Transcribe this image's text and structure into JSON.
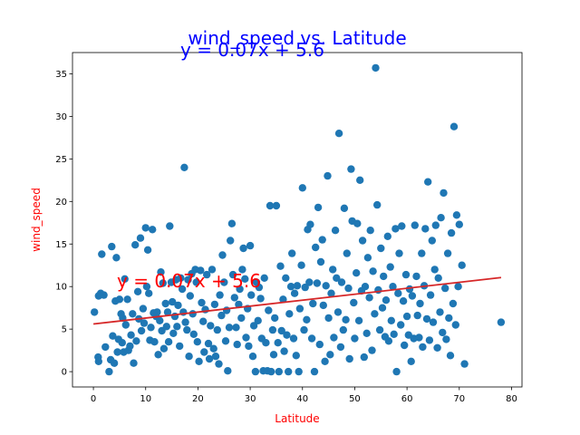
{
  "chart_data": {
    "type": "scatter",
    "title": "wind_speed vs. Latitude",
    "xlabel": "Latitude",
    "ylabel": "wind_speed",
    "xlim": [
      -4,
      82
    ],
    "ylim": [
      -1.8,
      37.5
    ],
    "xticks": [
      0,
      10,
      20,
      30,
      40,
      50,
      60,
      70,
      80
    ],
    "yticks": [
      0,
      5,
      10,
      15,
      20,
      25,
      30,
      35
    ],
    "grid": false,
    "colors": {
      "points": "#1f77b4",
      "regression": "#d62728",
      "title": "#0000ff",
      "labels": "#ff0000",
      "annotation": "#ff0000",
      "subtitle": "#0000ff"
    },
    "regression": {
      "slope": 0.07,
      "intercept": 5.6,
      "equation": "y = 0.07x + 5.6",
      "x_range": [
        0,
        78
      ]
    },
    "annotations": [
      {
        "text": "y = 0.07x + 5.6",
        "x": 4.5,
        "y": 9.9,
        "color": "red",
        "overlaps": "plot"
      },
      {
        "text": "y = 0.07x + 5.6",
        "x": 12.0,
        "y": 37.3,
        "color": "blue",
        "overlaps": "title"
      }
    ],
    "series": [
      {
        "points": [
          [
            0.2,
            7.0
          ],
          [
            0.9,
            1.7
          ],
          [
            1.0,
            1.2
          ],
          [
            1.0,
            8.9
          ],
          [
            1.4,
            9.2
          ],
          [
            1.6,
            13.8
          ],
          [
            2.0,
            9.0
          ],
          [
            2.3,
            2.9
          ],
          [
            3.0,
            0.0
          ],
          [
            3.3,
            1.4
          ],
          [
            3.5,
            14.7
          ],
          [
            3.7,
            4.2
          ],
          [
            4.0,
            1.0
          ],
          [
            4.2,
            8.3
          ],
          [
            4.4,
            13.4
          ],
          [
            4.6,
            2.3
          ],
          [
            4.8,
            3.8
          ],
          [
            5.0,
            8.5
          ],
          [
            5.3,
            6.8
          ],
          [
            5.5,
            3.4
          ],
          [
            5.6,
            6.3
          ],
          [
            5.8,
            2.3
          ],
          [
            6.0,
            10.9
          ],
          [
            6.2,
            5.5
          ],
          [
            6.5,
            8.5
          ],
          [
            6.7,
            2.5
          ],
          [
            7.0,
            3.0
          ],
          [
            7.2,
            4.3
          ],
          [
            7.5,
            6.8
          ],
          [
            7.7,
            1.0
          ],
          [
            8.0,
            14.9
          ],
          [
            8.2,
            3.6
          ],
          [
            8.5,
            9.4
          ],
          [
            8.7,
            6.2
          ],
          [
            9.0,
            15.7
          ],
          [
            9.2,
            4.8
          ],
          [
            9.5,
            7.4
          ],
          [
            9.7,
            5.7
          ],
          [
            10.0,
            16.9
          ],
          [
            10.2,
            10.0
          ],
          [
            10.4,
            14.3
          ],
          [
            10.6,
            9.2
          ],
          [
            10.8,
            3.7
          ],
          [
            11.0,
            5.2
          ],
          [
            11.3,
            16.7
          ],
          [
            11.5,
            6.9
          ],
          [
            11.7,
            3.5
          ],
          [
            12.0,
            6.5
          ],
          [
            12.2,
            7.0
          ],
          [
            12.4,
            2.0
          ],
          [
            12.7,
            6.0
          ],
          [
            12.9,
            11.7
          ],
          [
            13.1,
            4.8
          ],
          [
            13.3,
            10.4
          ],
          [
            13.5,
            2.7
          ],
          [
            13.8,
            8.0
          ],
          [
            14.0,
            5.3
          ],
          [
            14.2,
            7.0
          ],
          [
            14.4,
            3.5
          ],
          [
            14.6,
            17.1
          ],
          [
            14.9,
            10.5
          ],
          [
            15.1,
            8.2
          ],
          [
            15.3,
            4.5
          ],
          [
            15.6,
            6.5
          ],
          [
            15.8,
            10.8
          ],
          [
            16.0,
            5.3
          ],
          [
            16.2,
            7.8
          ],
          [
            16.5,
            3.0
          ],
          [
            16.7,
            11.0
          ],
          [
            17.0,
            9.7
          ],
          [
            17.2,
            7.0
          ],
          [
            17.4,
            24.0
          ],
          [
            17.6,
            5.8
          ],
          [
            17.9,
            4.9
          ],
          [
            18.1,
            10.8
          ],
          [
            18.3,
            1.8
          ],
          [
            18.5,
            8.9
          ],
          [
            18.8,
            11.5
          ],
          [
            19.0,
            6.8
          ],
          [
            19.2,
            4.4
          ],
          [
            19.5,
            12.0
          ],
          [
            19.7,
            10.5
          ],
          [
            19.9,
            3.5
          ],
          [
            20.2,
            1.2
          ],
          [
            20.5,
            11.9
          ],
          [
            20.7,
            8.1
          ],
          [
            21.0,
            5.9
          ],
          [
            21.2,
            2.3
          ],
          [
            21.4,
            7.3
          ],
          [
            21.7,
            11.4
          ],
          [
            22.0,
            3.3
          ],
          [
            22.2,
            1.5
          ],
          [
            22.4,
            5.4
          ],
          [
            22.7,
            12.0
          ],
          [
            23.0,
            2.7
          ],
          [
            23.2,
            7.9
          ],
          [
            23.4,
            1.8
          ],
          [
            23.7,
            4.9
          ],
          [
            24.0,
            0.9
          ],
          [
            24.2,
            9.0
          ],
          [
            24.5,
            6.6
          ],
          [
            24.7,
            13.7
          ],
          [
            25.0,
            10.5
          ],
          [
            25.3,
            3.6
          ],
          [
            25.5,
            7.2
          ],
          [
            25.7,
            0.1
          ],
          [
            26.0,
            5.2
          ],
          [
            26.2,
            15.4
          ],
          [
            26.5,
            17.4
          ],
          [
            26.7,
            11.4
          ],
          [
            27.0,
            8.7
          ],
          [
            27.3,
            5.2
          ],
          [
            27.5,
            3.2
          ],
          [
            27.8,
            7.9
          ],
          [
            28.0,
            9.7
          ],
          [
            28.3,
            6.3
          ],
          [
            28.5,
            12.0
          ],
          [
            28.7,
            14.5
          ],
          [
            29.0,
            10.9
          ],
          [
            29.2,
            4.0
          ],
          [
            29.5,
            7.4
          ],
          [
            29.7,
            3.0
          ],
          [
            30.0,
            14.8
          ],
          [
            30.2,
            9.0
          ],
          [
            30.5,
            1.8
          ],
          [
            30.7,
            5.4
          ],
          [
            31.0,
            0.0
          ],
          [
            31.2,
            10.5
          ],
          [
            31.5,
            6.0
          ],
          [
            31.7,
            9.9
          ],
          [
            32.0,
            8.6
          ],
          [
            32.2,
            3.9
          ],
          [
            32.5,
            0.1
          ],
          [
            32.7,
            11.0
          ],
          [
            33.0,
            3.4
          ],
          [
            33.3,
            0.1
          ],
          [
            33.5,
            7.2
          ],
          [
            33.8,
            19.5
          ],
          [
            34.0,
            0.0
          ],
          [
            34.3,
            4.9
          ],
          [
            34.5,
            2.0
          ],
          [
            34.7,
            6.3
          ],
          [
            35.0,
            19.5
          ],
          [
            35.3,
            3.4
          ],
          [
            35.5,
            0.0
          ],
          [
            35.8,
            12.4
          ],
          [
            36.0,
            4.8
          ],
          [
            36.3,
            8.5
          ],
          [
            36.5,
            2.4
          ],
          [
            36.8,
            11.0
          ],
          [
            37.0,
            4.3
          ],
          [
            37.3,
            0.0
          ],
          [
            37.5,
            6.8
          ],
          [
            37.8,
            10.0
          ],
          [
            38.0,
            13.9
          ],
          [
            38.3,
            3.9
          ],
          [
            38.5,
            9.2
          ],
          [
            38.8,
            1.9
          ],
          [
            39.0,
            10.1
          ],
          [
            39.3,
            0.0
          ],
          [
            39.5,
            7.4
          ],
          [
            39.8,
            12.5
          ],
          [
            40.0,
            21.6
          ],
          [
            40.3,
            4.9
          ],
          [
            40.5,
            9.9
          ],
          [
            40.8,
            6.1
          ],
          [
            41.0,
            16.7
          ],
          [
            41.3,
            10.5
          ],
          [
            41.5,
            17.3
          ],
          [
            41.8,
            3.9
          ],
          [
            42.0,
            8.0
          ],
          [
            42.3,
            0.0
          ],
          [
            42.5,
            14.6
          ],
          [
            42.8,
            10.4
          ],
          [
            43.0,
            19.3
          ],
          [
            43.3,
            3.2
          ],
          [
            43.5,
            12.9
          ],
          [
            43.8,
            15.5
          ],
          [
            44.0,
            7.8
          ],
          [
            44.3,
            1.2
          ],
          [
            44.5,
            10.1
          ],
          [
            44.8,
            23.0
          ],
          [
            45.0,
            6.3
          ],
          [
            45.3,
            2.0
          ],
          [
            45.5,
            9.2
          ],
          [
            45.8,
            12.0
          ],
          [
            46.0,
            4.0
          ],
          [
            46.3,
            16.6
          ],
          [
            46.5,
            11.0
          ],
          [
            46.8,
            7.0
          ],
          [
            47.0,
            28.0
          ],
          [
            47.3,
            2.9
          ],
          [
            47.5,
            10.5
          ],
          [
            47.8,
            4.9
          ],
          [
            48.0,
            19.2
          ],
          [
            48.3,
            6.1
          ],
          [
            48.5,
            13.9
          ],
          [
            48.8,
            9.8
          ],
          [
            49.0,
            1.5
          ],
          [
            49.3,
            23.8
          ],
          [
            49.5,
            17.7
          ],
          [
            49.8,
            8.1
          ],
          [
            50.0,
            3.9
          ],
          [
            50.3,
            11.6
          ],
          [
            50.5,
            17.4
          ],
          [
            50.8,
            6.0
          ],
          [
            51.0,
            22.5
          ],
          [
            51.3,
            9.5
          ],
          [
            51.5,
            15.4
          ],
          [
            51.8,
            1.7
          ],
          [
            52.0,
            10.0
          ],
          [
            52.3,
            4.5
          ],
          [
            52.5,
            13.4
          ],
          [
            52.8,
            8.7
          ],
          [
            53.0,
            16.6
          ],
          [
            53.3,
            2.5
          ],
          [
            53.5,
            11.8
          ],
          [
            53.8,
            6.8
          ],
          [
            54.0,
            35.7
          ],
          [
            54.3,
            19.6
          ],
          [
            54.5,
            9.6
          ],
          [
            54.8,
            4.9
          ],
          [
            55.0,
            14.5
          ],
          [
            55.3,
            7.5
          ],
          [
            55.5,
            11.2
          ],
          [
            55.8,
            4.1
          ],
          [
            56.0,
            8.4
          ],
          [
            56.3,
            15.9
          ],
          [
            56.5,
            3.6
          ],
          [
            56.8,
            12.3
          ],
          [
            57.0,
            6.0
          ],
          [
            57.3,
            10.0
          ],
          [
            57.5,
            4.4
          ],
          [
            57.8,
            16.8
          ],
          [
            58.0,
            0.0
          ],
          [
            58.3,
            9.2
          ],
          [
            58.5,
            13.9
          ],
          [
            58.8,
            5.5
          ],
          [
            59.0,
            17.1
          ],
          [
            59.3,
            8.3
          ],
          [
            59.5,
            3.1
          ],
          [
            59.8,
            11.4
          ],
          [
            60.0,
            6.5
          ],
          [
            60.3,
            4.3
          ],
          [
            60.5,
            9.7
          ],
          [
            60.8,
            1.2
          ],
          [
            61.0,
            8.9
          ],
          [
            61.3,
            3.9
          ],
          [
            61.5,
            17.2
          ],
          [
            61.8,
            11.2
          ],
          [
            62.0,
            6.6
          ],
          [
            62.3,
            4.0
          ],
          [
            62.5,
            8.0
          ],
          [
            62.8,
            13.9
          ],
          [
            63.0,
            2.9
          ],
          [
            63.3,
            10.1
          ],
          [
            63.5,
            16.8
          ],
          [
            63.8,
            6.2
          ],
          [
            64.0,
            22.3
          ],
          [
            64.3,
            3.7
          ],
          [
            64.5,
            9.0
          ],
          [
            64.8,
            15.4
          ],
          [
            65.0,
            5.8
          ],
          [
            65.3,
            12.0
          ],
          [
            65.5,
            17.2
          ],
          [
            65.8,
            2.8
          ],
          [
            66.0,
            11.0
          ],
          [
            66.3,
            7.0
          ],
          [
            66.5,
            18.1
          ],
          [
            66.8,
            4.6
          ],
          [
            67.0,
            21.0
          ],
          [
            67.3,
            9.8
          ],
          [
            67.5,
            3.8
          ],
          [
            67.8,
            13.9
          ],
          [
            68.0,
            6.3
          ],
          [
            68.3,
            1.9
          ],
          [
            68.5,
            16.3
          ],
          [
            68.8,
            8.0
          ],
          [
            69.0,
            28.8
          ],
          [
            69.3,
            5.5
          ],
          [
            69.5,
            18.4
          ],
          [
            69.8,
            10.0
          ],
          [
            70.0,
            17.3
          ],
          [
            70.5,
            12.5
          ],
          [
            71.0,
            0.9
          ],
          [
            78.0,
            5.8
          ]
        ]
      }
    ]
  }
}
